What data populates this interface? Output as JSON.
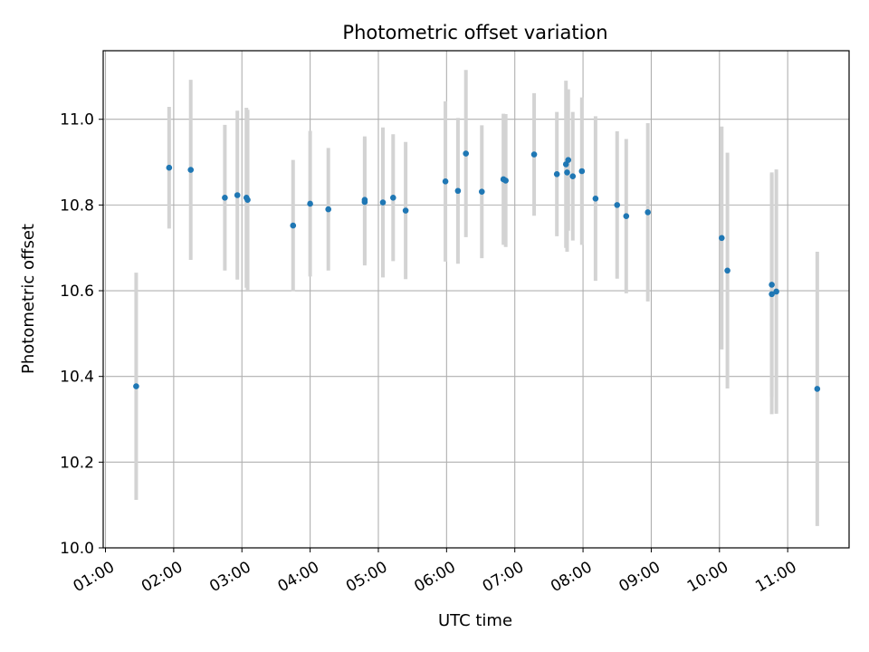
{
  "chart_data": {
    "type": "scatter",
    "title": "Photometric offset variation",
    "xlabel": "UTC time",
    "ylabel": "Photometric offset",
    "x_ticks": [
      "01:00",
      "02:00",
      "03:00",
      "04:00",
      "05:00",
      "06:00",
      "07:00",
      "08:00",
      "09:00",
      "10:00",
      "11:00"
    ],
    "y_ticks": [
      "10.0",
      "10.2",
      "10.4",
      "10.6",
      "10.8",
      "11.0"
    ],
    "xlim": [
      "00:58",
      "11:54"
    ],
    "ylim": [
      10.0,
      11.16
    ],
    "grid": true,
    "colors": {
      "points": "#1f77b4",
      "errorbars": "#d3d3d3",
      "grid": "#b0b0b0"
    },
    "series": [
      {
        "points": [
          {
            "x": "01:27",
            "y": 10.377,
            "err": 0.265
          },
          {
            "x": "01:56",
            "y": 10.887,
            "err": 0.142
          },
          {
            "x": "02:15",
            "y": 10.882,
            "err": 0.21
          },
          {
            "x": "02:45",
            "y": 10.817,
            "err": 0.17
          },
          {
            "x": "02:56",
            "y": 10.823,
            "err": 0.197
          },
          {
            "x": "03:04",
            "y": 10.817,
            "err": 0.21
          },
          {
            "x": "03:05",
            "y": 10.812,
            "err": 0.21
          },
          {
            "x": "03:45",
            "y": 10.752,
            "err": 0.153
          },
          {
            "x": "04:00",
            "y": 10.803,
            "err": 0.17
          },
          {
            "x": "04:16",
            "y": 10.79,
            "err": 0.143
          },
          {
            "x": "04:48",
            "y": 10.807,
            "err": 0.148
          },
          {
            "x": "04:48",
            "y": 10.812,
            "err": 0.148
          },
          {
            "x": "05:04",
            "y": 10.806,
            "err": 0.175
          },
          {
            "x": "05:13",
            "y": 10.817,
            "err": 0.148
          },
          {
            "x": "05:24",
            "y": 10.787,
            "err": 0.16
          },
          {
            "x": "05:59",
            "y": 10.855,
            "err": 0.187
          },
          {
            "x": "06:10",
            "y": 10.833,
            "err": 0.17
          },
          {
            "x": "06:17",
            "y": 10.92,
            "err": 0.195
          },
          {
            "x": "06:31",
            "y": 10.831,
            "err": 0.155
          },
          {
            "x": "06:50",
            "y": 10.86,
            "err": 0.153
          },
          {
            "x": "06:52",
            "y": 10.857,
            "err": 0.155
          },
          {
            "x": "07:17",
            "y": 10.918,
            "err": 0.143
          },
          {
            "x": "07:37",
            "y": 10.872,
            "err": 0.145
          },
          {
            "x": "07:45",
            "y": 10.895,
            "err": 0.195
          },
          {
            "x": "07:46",
            "y": 10.876,
            "err": 0.185
          },
          {
            "x": "07:47",
            "y": 10.905,
            "err": 0.165
          },
          {
            "x": "07:51",
            "y": 10.867,
            "err": 0.15
          },
          {
            "x": "07:59",
            "y": 10.879,
            "err": 0.172
          },
          {
            "x": "08:11",
            "y": 10.815,
            "err": 0.192
          },
          {
            "x": "08:30",
            "y": 10.8,
            "err": 0.172
          },
          {
            "x": "08:38",
            "y": 10.774,
            "err": 0.18
          },
          {
            "x": "08:57",
            "y": 10.783,
            "err": 0.208
          },
          {
            "x": "10:02",
            "y": 10.723,
            "err": 0.26
          },
          {
            "x": "10:07",
            "y": 10.647,
            "err": 0.275
          },
          {
            "x": "10:46",
            "y": 10.614,
            "err": 0.262
          },
          {
            "x": "10:46",
            "y": 10.592,
            "err": 0.28
          },
          {
            "x": "10:50",
            "y": 10.598,
            "err": 0.285
          },
          {
            "x": "11:26",
            "y": 10.371,
            "err": 0.32
          }
        ]
      }
    ]
  }
}
